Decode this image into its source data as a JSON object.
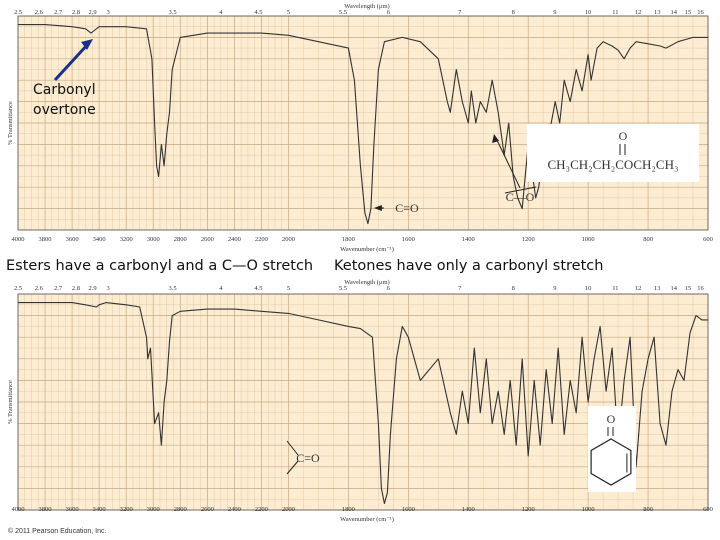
{
  "colors": {
    "paper": "#fbecd2",
    "grid": "#d9bf98",
    "grid_major": "#c9a87e",
    "trace": "#333333",
    "arrow": "#1a2f8a"
  },
  "chart_data": [
    {
      "type": "line",
      "name": "ester-spectrum",
      "top_axis_label": "Wavelength (μm)",
      "top_ticks": [
        "2.5",
        "2.6",
        "2.7",
        "2.8",
        "2.9",
        "3",
        "3.5",
        "4",
        "4.5",
        "5",
        "5.5",
        "6",
        "7",
        "8",
        "9",
        "10",
        "11",
        "12",
        "13",
        "14",
        "15",
        "16"
      ],
      "bottom_axis_label": "Wavenumber (cm⁻¹)",
      "bottom_ticks": [
        "4000",
        "3800",
        "3600",
        "3400",
        "3200",
        "3000",
        "2800",
        "2600",
        "2400",
        "2200",
        "2000",
        "1800",
        "1600",
        "1400",
        "1200",
        "1000",
        "800",
        "600"
      ],
      "ylabel": "% Transmittance",
      "xlim": [
        4000,
        600
      ],
      "ylim": [
        0,
        100
      ],
      "x": [
        4000,
        3800,
        3600,
        3500,
        3460,
        3440,
        3400,
        3200,
        3050,
        3010,
        2990,
        2975,
        2960,
        2940,
        2920,
        2900,
        2880,
        2860,
        2800,
        2600,
        2400,
        2200,
        2000,
        1900,
        1800,
        1780,
        1760,
        1745,
        1735,
        1725,
        1715,
        1700,
        1680,
        1620,
        1560,
        1500,
        1470,
        1460,
        1440,
        1420,
        1400,
        1390,
        1375,
        1360,
        1340,
        1320,
        1300,
        1280,
        1265,
        1250,
        1235,
        1220,
        1210,
        1200,
        1190,
        1175,
        1165,
        1150,
        1130,
        1110,
        1095,
        1080,
        1060,
        1040,
        1020,
        1000,
        990,
        970,
        950,
        920,
        900,
        880,
        860,
        840,
        800,
        760,
        740,
        700,
        650,
        600
      ],
      "y": [
        96,
        96,
        95,
        94,
        92,
        93,
        95,
        95,
        94,
        80,
        50,
        30,
        25,
        40,
        30,
        45,
        55,
        75,
        90,
        92,
        92,
        92,
        91,
        88,
        85,
        70,
        30,
        8,
        3,
        10,
        40,
        75,
        88,
        90,
        88,
        80,
        60,
        55,
        75,
        60,
        50,
        65,
        50,
        60,
        55,
        70,
        55,
        35,
        50,
        25,
        15,
        10,
        25,
        40,
        30,
        15,
        20,
        35,
        45,
        60,
        50,
        70,
        60,
        75,
        65,
        82,
        70,
        85,
        88,
        86,
        84,
        80,
        85,
        88,
        87,
        86,
        85,
        88,
        90,
        90
      ],
      "annotations": [
        {
          "text": "C=O",
          "wavenumber": 1740
        },
        {
          "text": "C—O",
          "wavenumber": 1180
        }
      ],
      "structure_formula": "CH₃CH₂CH₂COCH₂CH₃",
      "structure_atom": "O"
    },
    {
      "type": "line",
      "name": "ketone-spectrum",
      "top_axis_label": "Wavelength (μm)",
      "top_ticks": [
        "2.5",
        "2.6",
        "2.7",
        "2.8",
        "2.9",
        "3",
        "3.5",
        "4",
        "4.5",
        "5",
        "5.5",
        "6",
        "7",
        "8",
        "9",
        "10",
        "11",
        "12",
        "13",
        "14",
        "15",
        "16"
      ],
      "bottom_axis_label": "Wavenumber (cm⁻¹)",
      "bottom_ticks": [
        "4000",
        "3800",
        "3600",
        "3400",
        "3200",
        "3000",
        "2800",
        "2600",
        "2400",
        "2200",
        "2000",
        "1800",
        "1600",
        "1400",
        "1200",
        "1000",
        "800",
        "600"
      ],
      "ylabel": "% Transmittance",
      "xlim": [
        4000,
        600
      ],
      "ylim": [
        0,
        100
      ],
      "x": [
        4000,
        3800,
        3600,
        3500,
        3420,
        3400,
        3350,
        3200,
        3100,
        3050,
        3040,
        3020,
        2990,
        2960,
        2940,
        2920,
        2900,
        2880,
        2860,
        2800,
        2600,
        2400,
        2200,
        2000,
        1900,
        1800,
        1760,
        1720,
        1700,
        1690,
        1680,
        1670,
        1660,
        1640,
        1620,
        1600,
        1560,
        1500,
        1460,
        1440,
        1420,
        1400,
        1380,
        1360,
        1340,
        1320,
        1300,
        1280,
        1260,
        1240,
        1220,
        1200,
        1180,
        1160,
        1140,
        1120,
        1100,
        1080,
        1060,
        1040,
        1020,
        1000,
        980,
        960,
        940,
        920,
        900,
        880,
        860,
        840,
        820,
        800,
        780,
        760,
        740,
        720,
        700,
        680,
        660,
        640,
        620,
        600
      ],
      "y": [
        96,
        96,
        96,
        95,
        94,
        95,
        96,
        95,
        94,
        80,
        70,
        75,
        40,
        45,
        30,
        50,
        60,
        78,
        90,
        92,
        93,
        93,
        92,
        91,
        88,
        85,
        84,
        80,
        40,
        10,
        3,
        8,
        35,
        70,
        85,
        80,
        60,
        70,
        45,
        35,
        55,
        40,
        75,
        45,
        70,
        40,
        55,
        35,
        60,
        30,
        70,
        25,
        60,
        30,
        65,
        40,
        75,
        35,
        60,
        45,
        80,
        50,
        70,
        85,
        55,
        75,
        30,
        60,
        80,
        20,
        55,
        70,
        80,
        40,
        30,
        55,
        65,
        60,
        82,
        90,
        88,
        88
      ],
      "annotations": [
        {
          "text": "C=O",
          "wavenumber": 1690
        }
      ],
      "structure_atom": "O"
    }
  ],
  "captions": {
    "overtone": [
      "Carbonyl",
      "overtone"
    ],
    "esters": "Esters have a carbonyl and a C—O stretch",
    "ketones": "Ketones have only a carbonyl stretch",
    "copyright": "© 2011 Pearson Education, Inc."
  }
}
